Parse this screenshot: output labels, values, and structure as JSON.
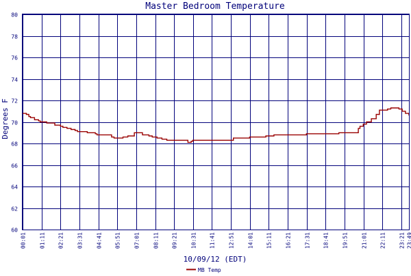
{
  "chart_data": {
    "type": "line",
    "title": "Master Bedroom Temperature",
    "xlabel": "10/09/12 (EDT)",
    "ylabel": "Degrees F",
    "ylim": [
      60,
      80
    ],
    "yticks": [
      60,
      62,
      64,
      66,
      68,
      70,
      72,
      74,
      76,
      78,
      80
    ],
    "xlim": [
      0.0167,
      23.8167
    ],
    "x_unit": "hours",
    "xtick_labels": [
      "00:01",
      "01:11",
      "02:21",
      "03:31",
      "04:41",
      "05:51",
      "07:01",
      "08:11",
      "09:21",
      "10:31",
      "11:41",
      "12:51",
      "14:01",
      "15:11",
      "16:21",
      "17:31",
      "18:41",
      "19:51",
      "21:01",
      "22:11",
      "23:21",
      "23:49"
    ],
    "xtick_hours": [
      0.0167,
      1.1833,
      2.35,
      3.5167,
      4.6833,
      5.85,
      7.0167,
      8.1833,
      9.35,
      10.5167,
      11.6833,
      12.85,
      14.0167,
      15.1833,
      16.35,
      17.5167,
      18.6833,
      19.85,
      21.0167,
      22.1833,
      23.35,
      23.8167
    ],
    "grid": true,
    "legend_position": "bottom-left",
    "series": [
      {
        "name": "MB Temp",
        "color": "#990000",
        "x": [
          0.0167,
          0.25,
          0.4,
          0.5,
          0.75,
          1.0,
          1.1,
          1.5,
          2.0,
          2.35,
          2.5,
          2.75,
          3.0,
          3.25,
          3.4,
          4.0,
          4.5,
          4.6,
          5.0,
          5.5,
          5.65,
          5.9,
          6.2,
          6.5,
          6.9,
          7.1,
          7.4,
          7.5,
          7.8,
          8.0,
          8.3,
          8.6,
          8.9,
          9.0,
          9.5,
          10.0,
          10.2,
          10.4,
          10.5,
          11.0,
          11.5,
          12.0,
          12.5,
          13.0,
          13.5,
          14.0,
          14.5,
          15.0,
          15.5,
          16.0,
          16.5,
          17.0,
          17.5,
          18.0,
          18.5,
          19.0,
          19.5,
          20.0,
          20.5,
          20.7,
          20.8,
          21.0,
          21.2,
          21.5,
          21.8,
          22.0,
          22.5,
          22.7,
          23.0,
          23.2,
          23.4,
          23.6,
          23.8167
        ],
        "values": [
          70.8,
          70.7,
          70.5,
          70.4,
          70.2,
          70.1,
          70.0,
          69.9,
          69.7,
          69.6,
          69.5,
          69.4,
          69.3,
          69.2,
          69.1,
          69.0,
          68.9,
          68.8,
          68.8,
          68.6,
          68.5,
          68.5,
          68.6,
          68.7,
          69.0,
          69.0,
          68.8,
          68.8,
          68.7,
          68.6,
          68.5,
          68.4,
          68.3,
          68.3,
          68.3,
          68.3,
          68.1,
          68.2,
          68.3,
          68.3,
          68.3,
          68.3,
          68.3,
          68.5,
          68.5,
          68.6,
          68.6,
          68.7,
          68.8,
          68.8,
          68.8,
          68.8,
          68.9,
          68.9,
          68.9,
          68.9,
          69.0,
          69.0,
          69.0,
          69.4,
          69.6,
          69.8,
          70.0,
          70.3,
          70.7,
          71.1,
          71.2,
          71.3,
          71.3,
          71.2,
          71.0,
          70.8,
          70.6
        ]
      }
    ]
  }
}
